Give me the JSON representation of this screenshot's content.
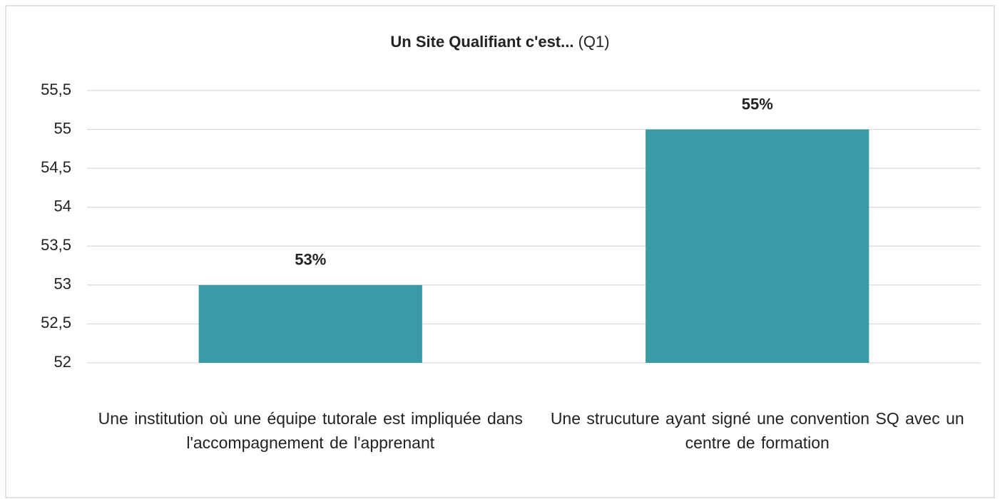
{
  "chart_data": {
    "type": "bar",
    "title": "Un Site Qualifiant c'est...",
    "subtitle": "(Q1)",
    "categories": [
      "Une institution où une équipe tutorale est impliquée dans l'accompagnement de l'apprenant",
      "Une strucuture ayant signé une convention SQ avec un centre de formation"
    ],
    "values": [
      53,
      55
    ],
    "value_labels": [
      "53%",
      "55%"
    ],
    "color": "#3a9aa6",
    "ylim": [
      52,
      55.5
    ],
    "yticks": [
      52,
      {
        "value": 52.5,
        "label": "52,5"
      },
      53,
      {
        "value": 53.5,
        "label": "53,5"
      },
      54,
      {
        "value": 54.5,
        "label": "54,5"
      },
      55,
      {
        "value": 55.5,
        "label": "55,5"
      }
    ],
    "grid": true
  }
}
